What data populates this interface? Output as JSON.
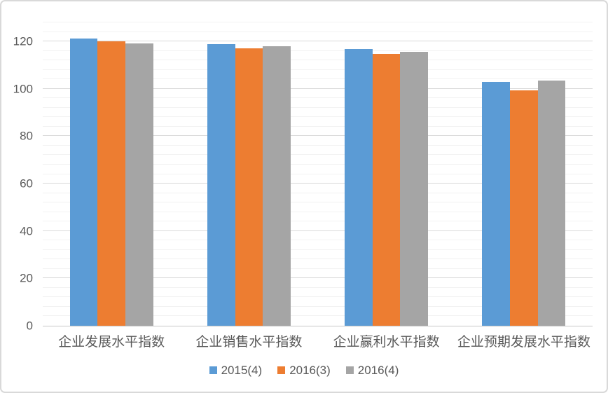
{
  "window": {
    "background": "#FFFFFF",
    "border_color": "#D9D9D9"
  },
  "colors": {
    "major_gridline": "#D9D9D9",
    "minor_gridline": "#F2F2F2",
    "axis_line": "#C8C8C8",
    "text": "#595959"
  },
  "chart_data": {
    "type": "bar",
    "title": "",
    "xlabel": "",
    "ylabel": "",
    "categories": [
      "企业发展水平指数",
      "企业销售水平指数",
      "企业赢利水平指数",
      "企业预期发展水平指数"
    ],
    "series": [
      {
        "name": "2015(4)",
        "color": "#5B9BD5",
        "values": [
          121.2,
          118.9,
          116.8,
          102.9
        ]
      },
      {
        "name": "2016(3)",
        "color": "#ED7D31",
        "values": [
          119.9,
          117.1,
          114.7,
          99.2
        ]
      },
      {
        "name": "2016(4)",
        "color": "#A5A5A5",
        "values": [
          119.2,
          117.9,
          115.6,
          103.6
        ]
      }
    ],
    "y_axis": {
      "min": 0,
      "max": 128,
      "major_unit": 20,
      "minor_unit": 4,
      "tick_labels": [
        "0",
        "20",
        "40",
        "60",
        "80",
        "100",
        "120"
      ]
    },
    "grid": {
      "major": true,
      "minor": true
    },
    "legend": {
      "position": "bottom",
      "entries": [
        "2015(4)",
        "2016(3)",
        "2016(4)"
      ]
    }
  }
}
